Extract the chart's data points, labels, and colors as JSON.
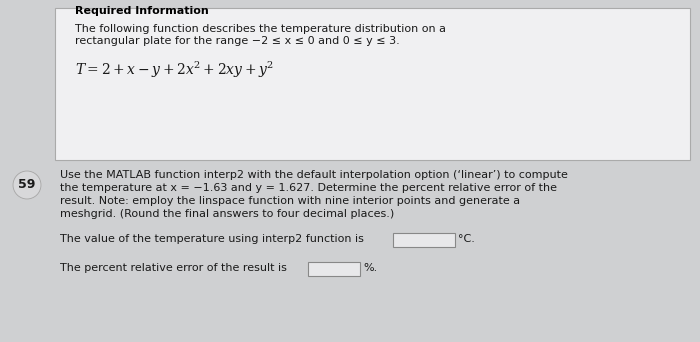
{
  "bg_color": "#cfd0d2",
  "top_box_bg": "#f0f0f2",
  "top_box_border": "#aaaaaa",
  "bottom_bg": "#cfd0d2",
  "title_text": "Required Information",
  "desc_line1": "The following function describes the temperature distribution on a",
  "desc_line2": "rectangular plate for the range −2 ≤ x ≤ 0 and 0 ≤ y ≤ 3.",
  "formula_text": "$T = 2 + x - y + 2x^2 + 2xy + y^2$",
  "question_number": "59",
  "q_line1": "Use the MATLAB function interp2 with the default interpolation option (‘linear’) to compute",
  "q_line2": "the temperature at x = −1.63 and y = 1.627. Determine the percent relative error of the",
  "q_line3": "result. Note: employ the linspace function with nine interior points and generate a",
  "q_line4": "meshgrid. (Round the final answers to four decimal places.)",
  "answer_line1_pre": "The value of the temperature using interp2 function is",
  "answer_line1_post": "°C.",
  "answer_line2_pre": "The percent relative error of the result is",
  "answer_line2_post": "%.",
  "font_size_title": 8,
  "font_size_body": 8,
  "font_size_formula": 10,
  "font_size_question": 8,
  "font_size_answer": 8,
  "font_size_number": 9,
  "text_color": "#1a1a1a",
  "title_color": "#000000",
  "input_box_color": "#e8e8ea",
  "input_box_border": "#888888"
}
